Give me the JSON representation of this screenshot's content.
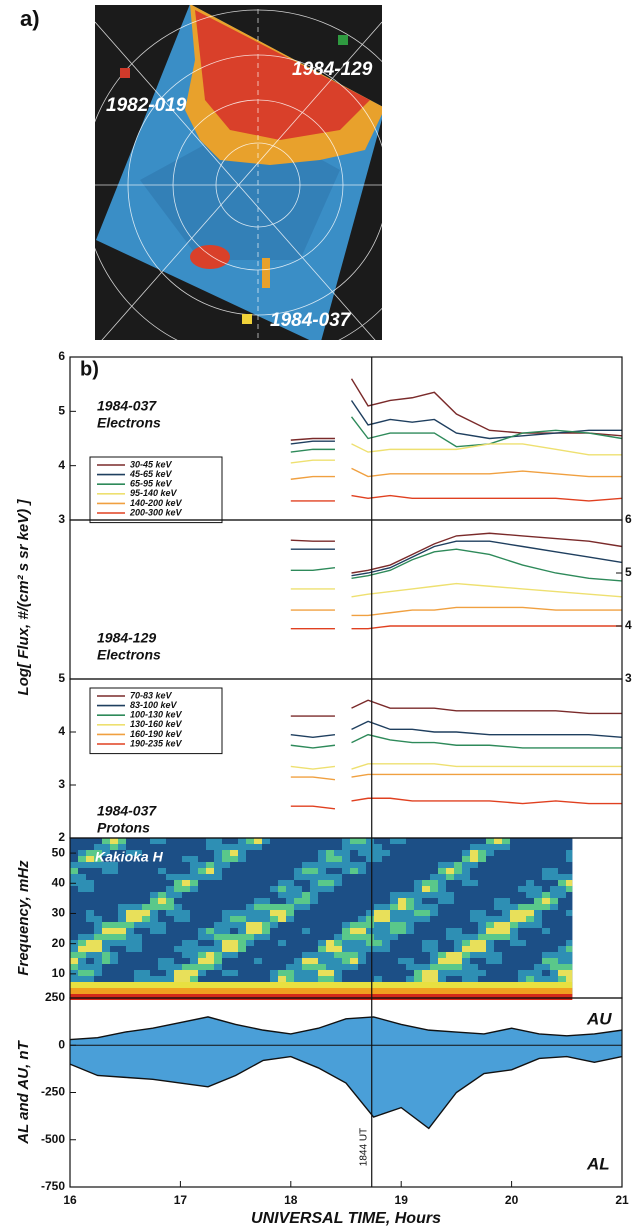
{
  "panel_a": {
    "label": "a)",
    "satellites": [
      {
        "name": "1982-019",
        "color": "#d03a2a"
      },
      {
        "name": "1984-129",
        "color": "#2f9a40"
      },
      {
        "name": "1984-037",
        "color": "#f0d23a"
      }
    ]
  },
  "panel_b": {
    "label": "b)"
  },
  "chart_data": [
    {
      "type": "line",
      "annotation": [
        "1984-037",
        "Electrons"
      ],
      "ylabel": "Log[ Flux, #/(cm² s sr keV) ]",
      "xlim": [
        16,
        21
      ],
      "ylim": [
        3,
        6
      ],
      "yticks": [
        3,
        4,
        5,
        6
      ],
      "yaxis_side": "left",
      "x": [
        18.0,
        18.2,
        18.4,
        18.5,
        18.55,
        18.7,
        18.9,
        19.1,
        19.3,
        19.5,
        19.8,
        20.1,
        20.4,
        20.7,
        21.0
      ],
      "series": [
        {
          "name": "30-45 keV",
          "color": "#7a2a2a",
          "values": [
            4.47,
            4.5,
            4.5,
            null,
            5.6,
            5.1,
            5.2,
            5.25,
            5.35,
            4.95,
            4.65,
            4.6,
            4.6,
            4.6,
            4.55
          ]
        },
        {
          "name": "45-65 keV",
          "color": "#1f3f5f",
          "values": [
            4.4,
            4.45,
            4.45,
            null,
            5.2,
            4.75,
            4.85,
            4.8,
            4.85,
            4.6,
            4.5,
            4.55,
            4.6,
            4.65,
            4.65
          ]
        },
        {
          "name": "65-95 keV",
          "color": "#2e8a5a",
          "values": [
            4.25,
            4.3,
            4.3,
            null,
            4.9,
            4.5,
            4.6,
            4.6,
            4.6,
            4.35,
            4.4,
            4.6,
            4.65,
            4.6,
            4.5
          ]
        },
        {
          "name": "95-140 keV",
          "color": "#eee070",
          "values": [
            4.05,
            4.1,
            4.1,
            null,
            4.4,
            4.25,
            4.3,
            4.3,
            4.3,
            4.3,
            4.4,
            4.4,
            4.3,
            4.2,
            4.2
          ]
        },
        {
          "name": "140-200 keV",
          "color": "#f0a040",
          "values": [
            3.75,
            3.8,
            3.8,
            null,
            3.95,
            3.8,
            3.85,
            3.85,
            3.85,
            3.85,
            3.85,
            3.9,
            3.85,
            3.8,
            3.8
          ]
        },
        {
          "name": "200-300 keV",
          "color": "#e04020",
          "values": [
            3.35,
            3.35,
            3.35,
            null,
            3.45,
            3.4,
            3.45,
            3.4,
            3.4,
            3.4,
            3.4,
            3.4,
            3.4,
            3.35,
            3.4
          ]
        }
      ]
    },
    {
      "type": "line",
      "annotation": [
        "1984-129",
        "Electrons"
      ],
      "xlim": [
        16,
        21
      ],
      "ylim": [
        3,
        6
      ],
      "yticks": [
        3,
        4,
        5,
        6
      ],
      "yaxis_side": "right",
      "x": [
        18.0,
        18.2,
        18.4,
        18.5,
        18.55,
        18.7,
        18.9,
        19.1,
        19.3,
        19.5,
        19.8,
        20.1,
        20.4,
        20.7,
        21.0
      ],
      "series": [
        {
          "color": "#7a2a2a",
          "values": [
            5.62,
            5.6,
            5.6,
            null,
            5.0,
            5.05,
            5.15,
            5.35,
            5.55,
            5.7,
            5.75,
            5.7,
            5.65,
            5.6,
            5.5
          ]
        },
        {
          "color": "#1f3f5f",
          "values": [
            5.45,
            5.45,
            5.45,
            null,
            4.95,
            5.0,
            5.1,
            5.3,
            5.5,
            5.6,
            5.6,
            5.5,
            5.4,
            5.3,
            5.2
          ]
        },
        {
          "color": "#2e8a5a",
          "values": [
            5.05,
            5.05,
            5.1,
            null,
            4.9,
            4.95,
            5.05,
            5.25,
            5.4,
            5.45,
            5.35,
            5.15,
            5.0,
            4.9,
            4.85
          ]
        },
        {
          "color": "#eee070",
          "values": [
            4.7,
            4.7,
            4.7,
            null,
            4.55,
            4.6,
            4.65,
            4.7,
            4.75,
            4.8,
            4.75,
            4.7,
            4.65,
            4.6,
            4.55
          ]
        },
        {
          "color": "#f0a040",
          "values": [
            4.3,
            4.3,
            4.3,
            null,
            4.2,
            4.2,
            4.25,
            4.3,
            4.3,
            4.35,
            4.35,
            4.35,
            4.3,
            4.3,
            4.3
          ]
        },
        {
          "color": "#e04020",
          "values": [
            3.95,
            3.95,
            3.95,
            null,
            3.95,
            3.95,
            4.0,
            4.0,
            4.0,
            4.0,
            4.0,
            4.0,
            4.0,
            4.0,
            4.0
          ]
        }
      ]
    },
    {
      "type": "line",
      "annotation": [
        "1984-037",
        "Protons"
      ],
      "xlim": [
        16,
        21
      ],
      "ylim": [
        2,
        5
      ],
      "yticks": [
        2,
        3,
        4,
        5
      ],
      "yaxis_side": "left",
      "x": [
        18.0,
        18.2,
        18.4,
        18.5,
        18.55,
        18.7,
        18.9,
        19.1,
        19.3,
        19.5,
        19.8,
        20.1,
        20.4,
        20.7,
        21.0
      ],
      "series": [
        {
          "name": "70-83 keV",
          "color": "#7a2a2a",
          "values": [
            4.3,
            4.3,
            4.3,
            null,
            4.45,
            4.6,
            4.45,
            4.45,
            4.45,
            4.4,
            4.4,
            4.4,
            4.4,
            4.35,
            4.35
          ]
        },
        {
          "name": "83-100 keV",
          "color": "#1f3f5f",
          "values": [
            3.95,
            3.9,
            3.95,
            null,
            4.05,
            4.2,
            4.05,
            4.05,
            4.0,
            4.0,
            3.95,
            3.95,
            3.95,
            3.95,
            3.9
          ]
        },
        {
          "name": "100-130 keV",
          "color": "#2e8a5a",
          "values": [
            3.75,
            3.7,
            3.75,
            null,
            3.8,
            3.95,
            3.85,
            3.8,
            3.8,
            3.75,
            3.75,
            3.7,
            3.7,
            3.7,
            3.7
          ]
        },
        {
          "name": "130-160 keV",
          "color": "#eee070",
          "values": [
            3.35,
            3.3,
            3.35,
            null,
            3.3,
            3.4,
            3.4,
            3.4,
            3.4,
            3.35,
            3.35,
            3.35,
            3.35,
            3.35,
            3.35
          ]
        },
        {
          "name": "160-190 keV",
          "color": "#f0a040",
          "values": [
            3.15,
            3.15,
            3.1,
            null,
            3.15,
            3.2,
            3.2,
            3.2,
            3.2,
            3.2,
            3.2,
            3.2,
            3.2,
            3.2,
            3.2
          ]
        },
        {
          "name": "190-235 keV",
          "color": "#e04020",
          "values": [
            2.6,
            2.6,
            2.55,
            null,
            2.7,
            2.75,
            2.75,
            2.7,
            2.7,
            2.7,
            2.7,
            2.65,
            2.7,
            2.65,
            2.65
          ]
        }
      ]
    },
    {
      "type": "spectrogram",
      "annotation": [
        "Kakioka H"
      ],
      "ylabel": "Frequency, mHz",
      "xlim": [
        16,
        21
      ],
      "data_x_range": [
        16,
        20.55
      ],
      "ylim": [
        2,
        55
      ],
      "yticks": [
        10,
        20,
        30,
        40,
        50
      ],
      "yaxis_side": "left"
    },
    {
      "type": "area",
      "ylabel": "AL and AU, nT",
      "xlim": [
        16,
        21
      ],
      "xticks": [
        16,
        17,
        18,
        19,
        20,
        21
      ],
      "xlabel": "UNIVERSAL TIME, Hours",
      "ylim": [
        -750,
        250
      ],
      "yticks": [
        -750,
        -500,
        -250,
        0,
        250
      ],
      "yaxis_side": "left",
      "marker": {
        "value": 18.733,
        "label": "1844 UT"
      },
      "x": [
        16,
        16.25,
        16.5,
        16.75,
        17,
        17.25,
        17.5,
        17.75,
        18,
        18.25,
        18.5,
        18.75,
        19,
        19.25,
        19.5,
        19.75,
        20,
        20.25,
        20.5,
        20.75,
        21
      ],
      "fill_color": "#4a9fd8",
      "series": [
        {
          "name": "AU",
          "color": "#111111",
          "values": [
            30,
            40,
            70,
            90,
            120,
            150,
            110,
            80,
            60,
            90,
            140,
            150,
            110,
            80,
            70,
            60,
            90,
            60,
            50,
            60,
            80
          ]
        },
        {
          "name": "AL",
          "color": "#111111",
          "values": [
            -100,
            -160,
            -170,
            -180,
            -200,
            -220,
            -160,
            -80,
            -60,
            -120,
            -200,
            -380,
            -330,
            -440,
            -250,
            -150,
            -130,
            -70,
            -60,
            -90,
            -60
          ]
        }
      ]
    }
  ]
}
